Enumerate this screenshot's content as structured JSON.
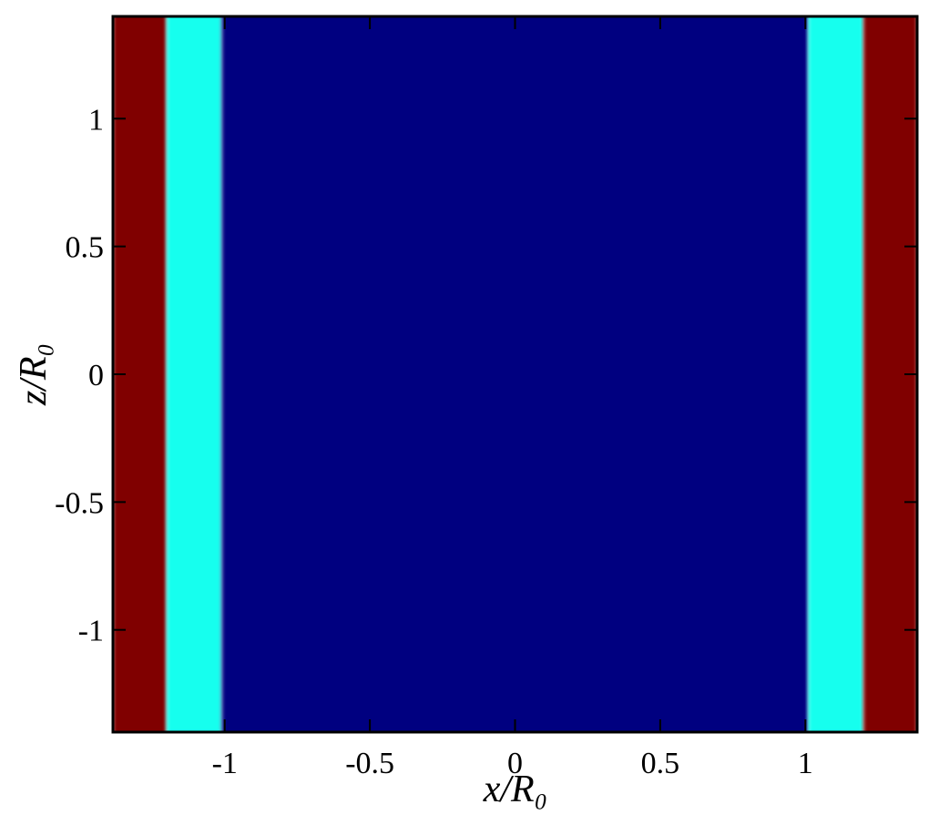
{
  "chart_data": {
    "type": "contour",
    "xlabel": "x/R₀",
    "ylabel": "z/R₀",
    "xlim": [
      -1.385,
      1.385
    ],
    "ylim": [
      -1.4,
      1.4
    ],
    "xticks": [
      -1,
      -0.5,
      0,
      0.5,
      1
    ],
    "yticks": [
      -1,
      -0.5,
      0,
      0.5,
      1
    ],
    "bands": [
      {
        "from": -1.385,
        "to": -1.2,
        "color": "#800000"
      },
      {
        "from": -1.2,
        "to": -1.01,
        "color": "#14ffee"
      },
      {
        "from": -1.01,
        "to": 1.01,
        "color": "#000080"
      },
      {
        "from": 1.01,
        "to": 1.2,
        "color": "#14ffee"
      },
      {
        "from": 1.2,
        "to": 1.385,
        "color": "#800000"
      }
    ]
  }
}
